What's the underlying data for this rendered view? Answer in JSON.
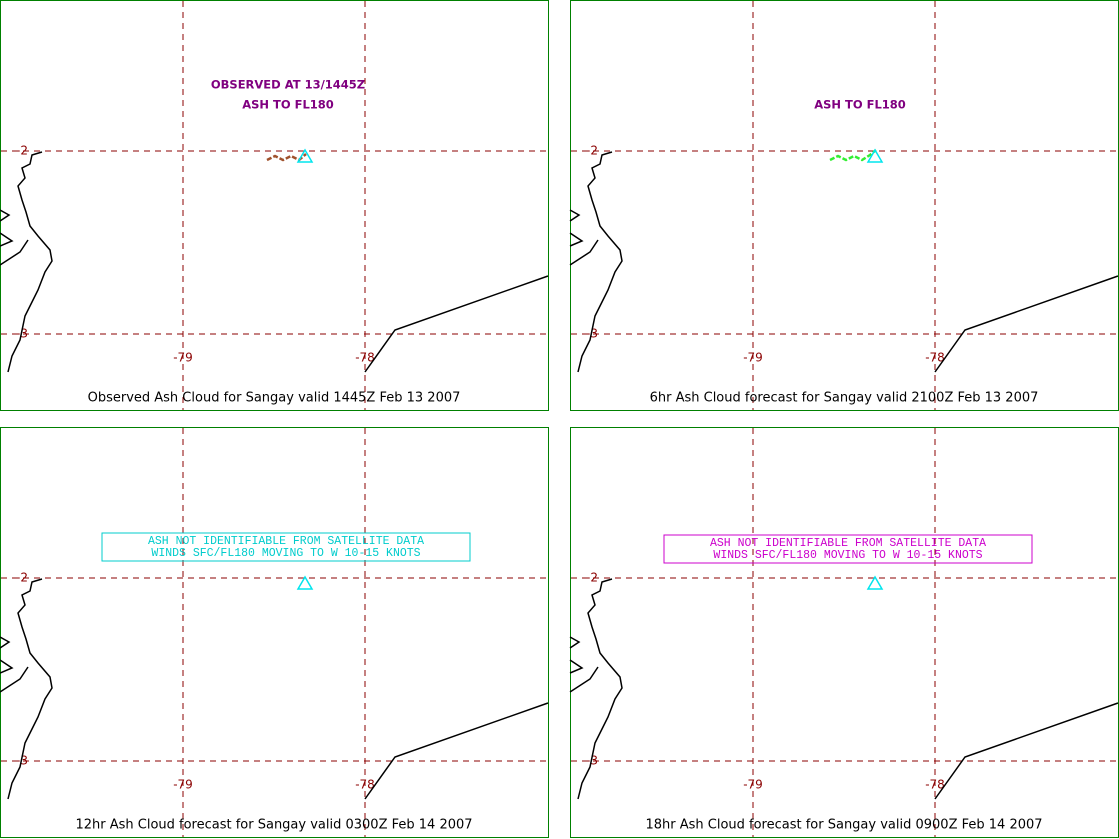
{
  "panels": [
    {
      "caption": "Observed Ash Cloud for Sangay valid 1445Z Feb 13 2007",
      "annotation": [
        "OBSERVED AT 13/1445Z",
        "ASH TO FL180"
      ],
      "annotation_color": "#800080",
      "boxed": false,
      "cloud_color": "#a0522d"
    },
    {
      "caption": "6hr Ash Cloud forecast for Sangay valid 2100Z Feb 13 2007",
      "annotation": [
        "ASH TO FL180"
      ],
      "annotation_color": "#800080",
      "boxed": false,
      "cloud_color": "#33ee33"
    },
    {
      "caption": "12hr Ash Cloud forecast for Sangay valid 0300Z Feb 14 2007",
      "annotation": [
        "ASH NOT IDENTIFIABLE FROM SATELLITE DATA",
        "WINDS SFC/FL180 MOVING TO W 10-15 KNOTS"
      ],
      "annotation_color": "#00cccc",
      "boxed": true
    },
    {
      "caption": "18hr Ash Cloud forecast for Sangay valid 0900Z Feb 14 2007",
      "annotation": [
        "ASH NOT IDENTIFIABLE FROM SATELLITE DATA",
        "WINDS SFC/FL180 MOVING TO W 10-15 KNOTS"
      ],
      "annotation_color": "#cc00cc",
      "boxed": true
    }
  ],
  "grid": {
    "lat": [
      -2,
      -3
    ],
    "lon": [
      -79,
      -78
    ]
  }
}
